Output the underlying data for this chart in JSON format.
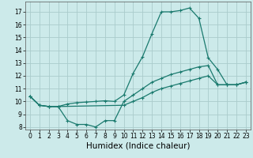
{
  "xlabel": "Humidex (Indice chaleur)",
  "bg_color": "#cceaea",
  "grid_color": "#aacccc",
  "line_color": "#1a7a6e",
  "xlim": [
    -0.5,
    23.5
  ],
  "ylim": [
    7.8,
    17.8
  ],
  "xticks": [
    0,
    1,
    2,
    3,
    4,
    5,
    6,
    7,
    8,
    9,
    10,
    11,
    12,
    13,
    14,
    15,
    16,
    17,
    18,
    19,
    20,
    21,
    22,
    23
  ],
  "yticks": [
    8,
    9,
    10,
    11,
    12,
    13,
    14,
    15,
    16,
    17
  ],
  "line1_x": [
    0,
    1,
    2,
    3,
    4,
    5,
    6,
    7,
    8,
    9,
    10,
    11,
    12,
    13,
    14,
    15,
    16,
    17,
    18,
    19,
    20,
    21,
    22,
    23
  ],
  "line1_y": [
    10.4,
    9.7,
    9.6,
    9.6,
    9.8,
    9.9,
    9.95,
    10.0,
    10.05,
    10.0,
    10.5,
    12.2,
    13.5,
    15.3,
    17.0,
    17.0,
    17.1,
    17.3,
    16.5,
    13.4,
    12.5,
    11.3,
    11.3,
    11.5
  ],
  "line2_x": [
    0,
    1,
    2,
    3,
    4,
    5,
    6,
    7,
    8,
    9,
    10,
    11,
    12,
    13,
    14,
    15,
    16,
    17,
    18,
    19,
    20,
    21,
    22,
    23
  ],
  "line2_y": [
    10.4,
    9.7,
    9.6,
    9.6,
    8.5,
    8.2,
    8.2,
    8.0,
    8.5,
    8.5,
    10.0,
    10.5,
    11.0,
    11.5,
    11.8,
    12.1,
    12.3,
    12.5,
    12.7,
    12.8,
    11.3,
    11.3,
    11.3,
    11.5
  ],
  "line3_x": [
    0,
    1,
    2,
    3,
    10,
    11,
    12,
    13,
    14,
    15,
    16,
    17,
    18,
    19,
    20,
    21,
    22,
    23
  ],
  "line3_y": [
    10.4,
    9.7,
    9.6,
    9.6,
    9.7,
    10.0,
    10.3,
    10.7,
    11.0,
    11.2,
    11.4,
    11.6,
    11.8,
    12.0,
    11.3,
    11.3,
    11.3,
    11.5
  ],
  "marker": "+",
  "markersize": 3,
  "linewidth": 0.9,
  "tick_fontsize": 5.5,
  "label_fontsize": 7.5
}
